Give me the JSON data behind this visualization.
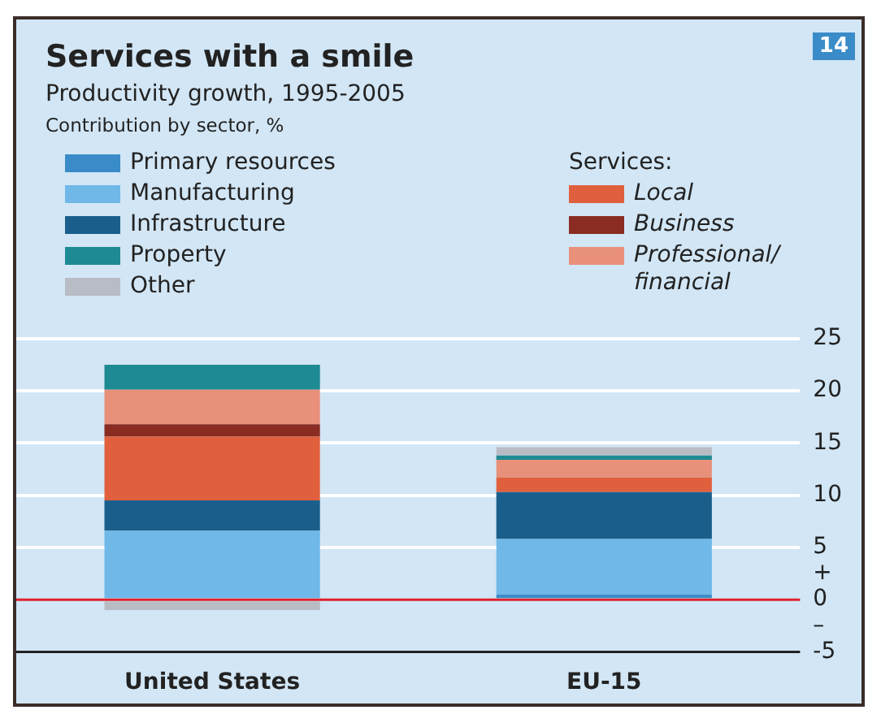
{
  "chart_data": {
    "type": "bar",
    "stacked": true,
    "title": "Services with a smile",
    "subtitle": "Productivity growth, 1995-2005",
    "legend_title": "Services:",
    "legend": "top left",
    "grid": "y",
    "categories": [
      "United States",
      "EU-15"
    ],
    "series": [
      {
        "name": "Primary resources",
        "color": "#3a8cc8",
        "values": [
          0,
          0.5
        ]
      },
      {
        "name": "Manufacturing",
        "color": "#6fb8e8",
        "values": [
          6.6,
          5.3
        ]
      },
      {
        "name": "Infrastructure",
        "color": "#1a5f8c",
        "values": [
          2.9,
          4.5
        ]
      },
      {
        "name": "Local",
        "color": "#e0603e",
        "values": [
          6.1,
          1.4
        ]
      },
      {
        "name": "Business",
        "color": "#8a2c22",
        "values": [
          1.2,
          0
        ]
      },
      {
        "name": "Professional/ financial",
        "color": "#e8907a",
        "values": [
          3.3,
          1.7
        ]
      },
      {
        "name": "Property",
        "color": "#1e8a93",
        "values": [
          2.4,
          0.4
        ]
      },
      {
        "name": "Other",
        "color": "#b8bcc4",
        "values": [
          -1.0,
          0.8
        ]
      }
    ],
    "ylim": [
      -5,
      25
    ],
    "yticks": [
      -5,
      {
        "value": -2.5,
        "label": "–"
      },
      0,
      {
        "value": 2.5,
        "label": "+"
      },
      5,
      10,
      15,
      20,
      25
    ],
    "ref_lines": [
      {
        "axis": "y",
        "value": 0,
        "color": "#e0202a"
      }
    ],
    "annotations": [
      "Contribution by sector, %",
      "14"
    ]
  }
}
